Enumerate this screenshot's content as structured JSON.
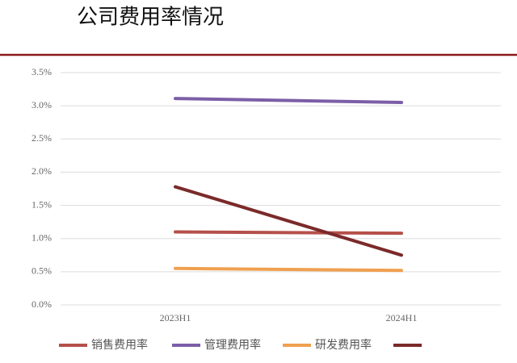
{
  "chart_data": {
    "type": "line",
    "title": "公司费用率情况",
    "categories": [
      "2023H1",
      "2024H1"
    ],
    "series": [
      {
        "name": "销售费用率",
        "color": "#b5504a",
        "values": [
          1.1,
          1.08
        ]
      },
      {
        "name": "管理费用率",
        "color": "#7b5ea7",
        "values": [
          3.11,
          3.05
        ]
      },
      {
        "name": "研发费用率",
        "color": "#f0a050",
        "values": [
          0.55,
          0.52
        ]
      },
      {
        "color": "#7b2a2a",
        "values": [
          1.78,
          0.75
        ]
      }
    ],
    "ylim": [
      0,
      3.5
    ],
    "yticks": [
      {
        "value": 0,
        "label": "0.0%"
      },
      {
        "value": 0.5,
        "label": "0.5%"
      },
      {
        "value": 1,
        "label": "1.0%"
      },
      {
        "value": 1.5,
        "label": "1.5%"
      },
      {
        "value": 2,
        "label": "2.0%"
      },
      {
        "value": 2.5,
        "label": "2.5%"
      },
      {
        "value": 3,
        "label": "3.0%"
      },
      {
        "value": 3.5,
        "label": "3.5%"
      }
    ],
    "grid": true
  }
}
